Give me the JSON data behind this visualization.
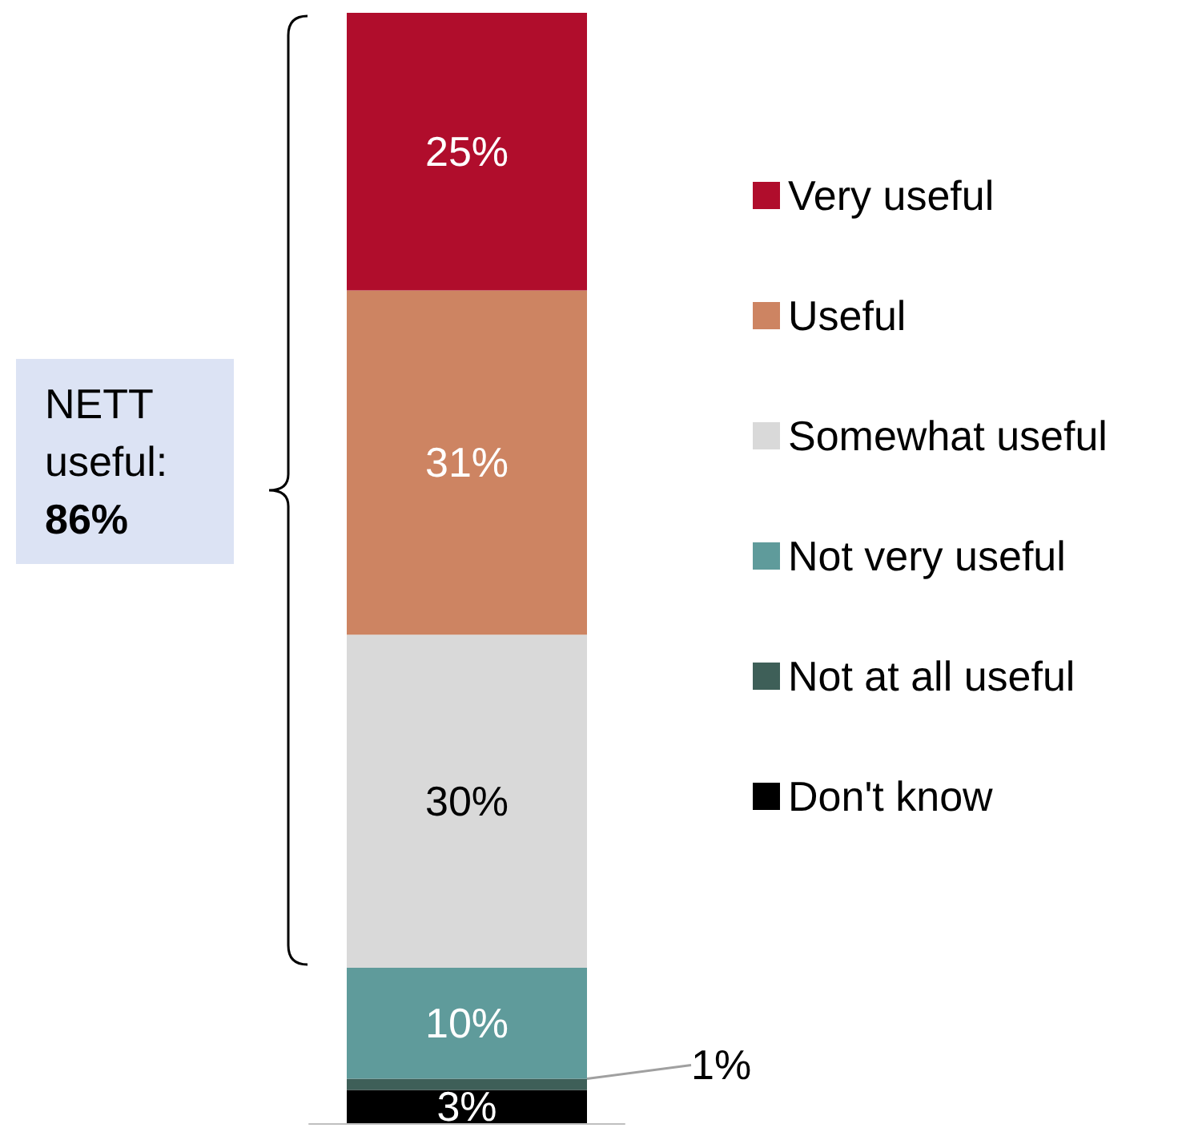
{
  "chart_data": {
    "type": "bar",
    "stacked": true,
    "categories": [
      null
    ],
    "series": [
      {
        "name": "Don't know",
        "color": "#000000",
        "values": [
          3
        ],
        "value_labels": [
          "3%"
        ]
      },
      {
        "name": "Not at all useful",
        "color": "#3e5f58",
        "values": [
          1
        ],
        "value_labels": [
          "1%"
        ]
      },
      {
        "name": "Not very useful",
        "color": "#5f9b9b",
        "values": [
          10
        ],
        "value_labels": [
          "10%"
        ]
      },
      {
        "name": "Somewhat useful",
        "color": "#d9d9d9",
        "values": [
          30
        ],
        "value_labels": [
          "30%"
        ]
      },
      {
        "name": "Useful",
        "color": "#cd8462",
        "values": [
          31
        ],
        "value_labels": [
          "31%"
        ]
      },
      {
        "name": "Very useful",
        "color": "#b00d2c",
        "values": [
          25
        ],
        "value_labels": [
          "25%"
        ]
      }
    ],
    "legend": "right",
    "annotations": [
      "NETT useful: 86%"
    ]
  }
}
